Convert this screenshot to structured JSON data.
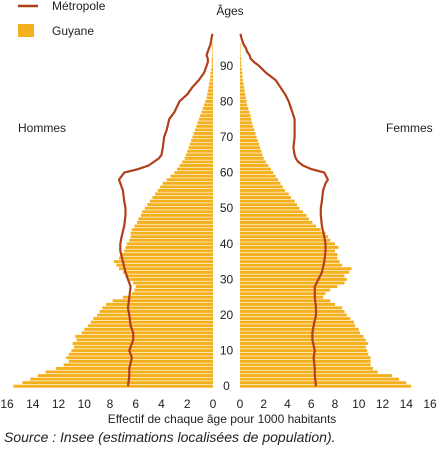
{
  "chart_data": {
    "type": "bar",
    "subtype": "population-pyramid",
    "title": "",
    "center_axis_title": "Âges",
    "xlabel": "Effectif de chaque âge pour 1000 habitants",
    "xlim": [
      0,
      16
    ],
    "x_ticks": [
      16,
      14,
      12,
      10,
      8,
      6,
      4,
      2,
      0
    ],
    "age_ticks": [
      0,
      10,
      20,
      30,
      40,
      50,
      60,
      70,
      80,
      90
    ],
    "age_range": [
      0,
      99
    ],
    "left_side_label": "Hommes",
    "right_side_label": "Femmes",
    "legend": {
      "position": "top-left",
      "items": [
        {
          "name": "Métropole",
          "kind": "line",
          "color": "#b0401a"
        },
        {
          "name": "Guyane",
          "kind": "bar",
          "color": "#f5b01e"
        }
      ]
    },
    "series": [
      {
        "name": "Guyane",
        "sex": "Hommes",
        "color": "#f5b01e",
        "ages": [
          0,
          1,
          2,
          3,
          4,
          5,
          6,
          7,
          8,
          9,
          10,
          11,
          12,
          13,
          14,
          15,
          16,
          17,
          18,
          19,
          20,
          21,
          22,
          23,
          24,
          25,
          26,
          27,
          28,
          29,
          30,
          31,
          32,
          33,
          34,
          35,
          36,
          37,
          38,
          39,
          40,
          41,
          42,
          43,
          44,
          45,
          46,
          47,
          48,
          49,
          50,
          51,
          52,
          53,
          54,
          55,
          56,
          57,
          58,
          59,
          60,
          61,
          62,
          63,
          64,
          65,
          66,
          67,
          68,
          69,
          70,
          71,
          72,
          73,
          74,
          75,
          76,
          77,
          78,
          79,
          80,
          81,
          82,
          83,
          84,
          85,
          86,
          87,
          88,
          89,
          90,
          91,
          92,
          93,
          94,
          95,
          96,
          97,
          98,
          99
        ],
        "values": [
          15.5,
          14.8,
          14.2,
          13.6,
          13.0,
          12.2,
          11.6,
          11.2,
          11.4,
          11.2,
          11.0,
          10.8,
          10.9,
          10.6,
          10.7,
          10.2,
          10.0,
          9.7,
          9.5,
          9.3,
          9.0,
          8.8,
          8.6,
          8.3,
          7.8,
          7.0,
          6.3,
          6.1,
          6.0,
          6.2,
          6.5,
          6.8,
          7.0,
          7.3,
          7.5,
          7.7,
          7.3,
          7.1,
          6.9,
          6.8,
          6.7,
          6.5,
          6.4,
          6.4,
          6.3,
          6.1,
          5.9,
          5.8,
          5.6,
          5.5,
          5.3,
          5.1,
          4.9,
          4.7,
          4.5,
          4.3,
          4.1,
          3.9,
          3.6,
          3.3,
          3.0,
          2.8,
          2.6,
          2.4,
          2.2,
          2.1,
          2.0,
          1.9,
          1.8,
          1.7,
          1.6,
          1.5,
          1.4,
          1.3,
          1.2,
          1.1,
          1.0,
          0.9,
          0.8,
          0.7,
          0.6,
          0.5,
          0.45,
          0.4,
          0.35,
          0.3,
          0.25,
          0.2,
          0.2,
          0.15,
          0.1,
          0.1,
          0.1,
          0.05,
          0.05,
          0.05,
          0.05,
          0.0,
          0.0,
          0.0
        ]
      },
      {
        "name": "Guyane",
        "sex": "Femmes",
        "color": "#f5b01e",
        "ages": [
          0,
          1,
          2,
          3,
          4,
          5,
          6,
          7,
          8,
          9,
          10,
          11,
          12,
          13,
          14,
          15,
          16,
          17,
          18,
          19,
          20,
          21,
          22,
          23,
          24,
          25,
          26,
          27,
          28,
          29,
          30,
          31,
          32,
          33,
          34,
          35,
          36,
          37,
          38,
          39,
          40,
          41,
          42,
          43,
          44,
          45,
          46,
          47,
          48,
          49,
          50,
          51,
          52,
          53,
          54,
          55,
          56,
          57,
          58,
          59,
          60,
          61,
          62,
          63,
          64,
          65,
          66,
          67,
          68,
          69,
          70,
          71,
          72,
          73,
          74,
          75,
          76,
          77,
          78,
          79,
          80,
          81,
          82,
          83,
          84,
          85,
          86,
          87,
          88,
          89,
          90,
          91,
          92,
          93,
          94,
          95,
          96,
          97,
          98,
          99
        ],
        "values": [
          14.4,
          14.0,
          13.4,
          12.8,
          11.6,
          11.2,
          11.0,
          11.0,
          11.0,
          10.8,
          10.7,
          10.6,
          10.8,
          10.6,
          10.4,
          10.1,
          10.0,
          9.7,
          9.6,
          9.3,
          9.0,
          8.8,
          8.6,
          8.0,
          7.6,
          7.0,
          7.2,
          7.6,
          8.2,
          8.8,
          9.0,
          8.8,
          9.2,
          9.4,
          8.6,
          8.4,
          8.2,
          8.2,
          8.0,
          8.3,
          8.0,
          7.6,
          7.4,
          7.2,
          6.8,
          6.4,
          6.1,
          5.8,
          5.6,
          5.3,
          5.0,
          4.8,
          4.6,
          4.3,
          4.1,
          3.8,
          3.6,
          3.4,
          3.2,
          3.0,
          2.8,
          2.6,
          2.4,
          2.2,
          2.0,
          1.9,
          1.8,
          1.7,
          1.6,
          1.5,
          1.4,
          1.3,
          1.2,
          1.1,
          1.0,
          0.95,
          0.9,
          0.8,
          0.7,
          0.6,
          0.55,
          0.5,
          0.45,
          0.4,
          0.35,
          0.3,
          0.25,
          0.2,
          0.2,
          0.15,
          0.1,
          0.1,
          0.1,
          0.05,
          0.05,
          0.05,
          0.05,
          0.0,
          0.0,
          0.0
        ]
      },
      {
        "name": "Métropole",
        "sex": "Hommes",
        "color": "#b0401a",
        "ages": [
          0,
          3,
          5,
          8,
          10,
          13,
          15,
          17,
          20,
          22,
          25,
          28,
          30,
          32,
          35,
          38,
          40,
          42,
          45,
          48,
          50,
          52,
          55,
          57,
          58,
          60,
          61,
          62,
          63,
          64,
          65,
          67,
          70,
          72,
          75,
          77,
          80,
          82,
          84,
          86,
          87,
          88,
          90,
          91,
          92,
          93,
          94,
          95,
          96,
          97,
          98,
          99
        ],
        "values": [
          6.6,
          6.5,
          6.5,
          6.3,
          6.5,
          6.2,
          6.2,
          6.4,
          6.5,
          6.6,
          6.5,
          6.4,
          6.6,
          6.8,
          7.0,
          7.2,
          7.2,
          7.1,
          6.9,
          6.8,
          6.8,
          6.9,
          7.0,
          7.2,
          7.3,
          6.9,
          5.8,
          5.0,
          4.6,
          4.2,
          4.0,
          3.9,
          3.8,
          3.6,
          3.4,
          3.0,
          2.6,
          2.0,
          1.6,
          1.1,
          0.9,
          0.7,
          0.5,
          0.4,
          0.4,
          0.5,
          0.4,
          0.3,
          0.2,
          0.15,
          0.1,
          0.05
        ]
      },
      {
        "name": "Métropole",
        "sex": "Femmes",
        "color": "#b0401a",
        "ages": [
          0,
          3,
          5,
          8,
          10,
          13,
          15,
          17,
          20,
          22,
          25,
          28,
          30,
          32,
          35,
          38,
          40,
          42,
          45,
          48,
          50,
          52,
          55,
          57,
          58,
          60,
          61,
          62,
          63,
          64,
          65,
          67,
          70,
          72,
          75,
          77,
          80,
          82,
          84,
          86,
          87,
          88,
          90,
          91,
          92,
          93,
          94,
          95,
          96,
          97,
          98,
          99
        ],
        "values": [
          6.4,
          6.3,
          6.3,
          6.2,
          6.3,
          6.1,
          6.1,
          6.2,
          6.4,
          6.4,
          6.3,
          6.3,
          6.6,
          6.9,
          7.1,
          7.2,
          7.2,
          7.1,
          6.9,
          6.8,
          6.8,
          6.9,
          7.0,
          7.2,
          7.4,
          7.1,
          6.0,
          5.3,
          4.9,
          4.7,
          4.6,
          4.5,
          4.6,
          4.6,
          4.6,
          4.4,
          4.1,
          3.8,
          3.4,
          3.0,
          2.6,
          2.2,
          1.6,
          1.2,
          0.9,
          0.8,
          0.6,
          0.5,
          0.3,
          0.2,
          0.1,
          0.05
        ]
      }
    ]
  },
  "source": "Source : Insee (estimations localisées de population)."
}
